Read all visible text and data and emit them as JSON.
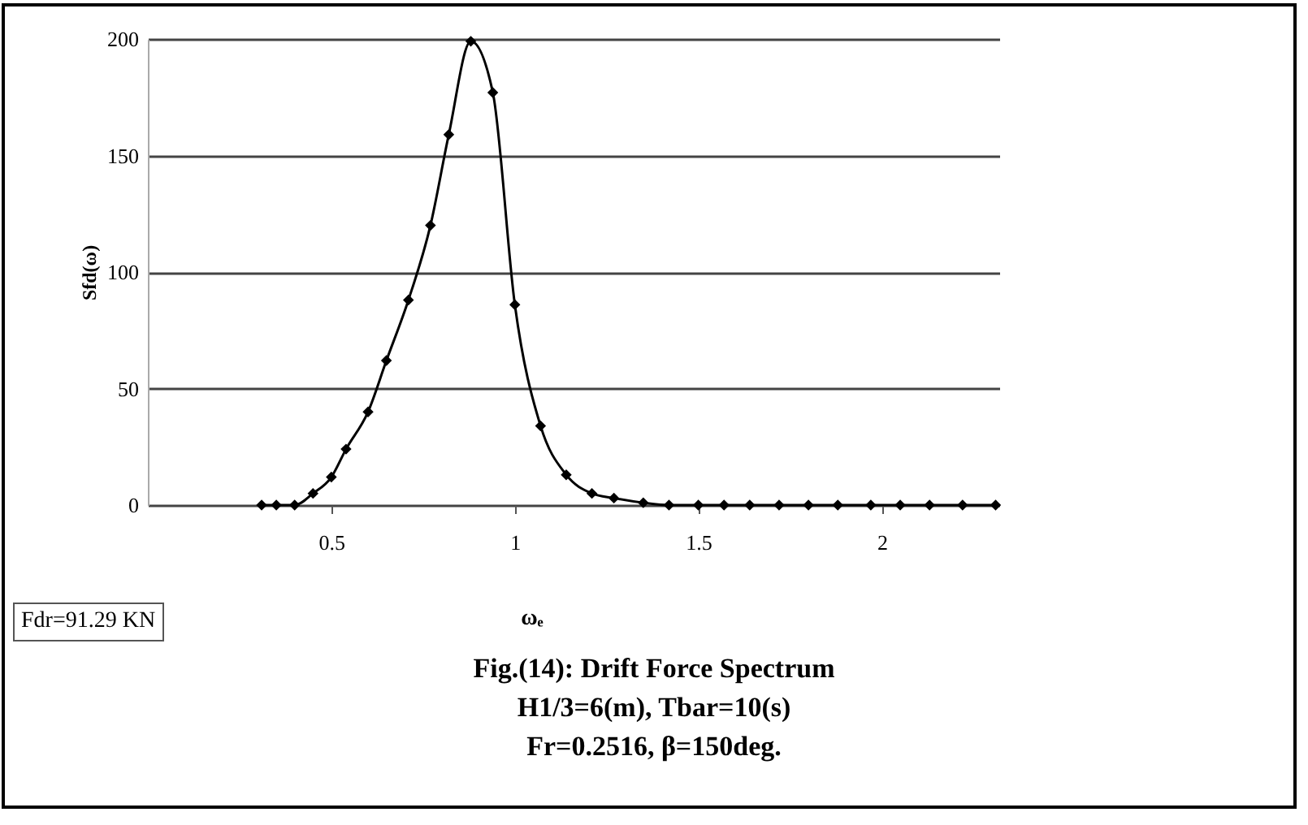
{
  "chart_data": {
    "type": "line",
    "title": "Fig.(14): Drift Force Spectrum",
    "subtitle": "H1/3=6(m), Tbar=10(s)",
    "annotations": [
      "Fr=0.2516, β=150deg.",
      "Fdr=91.29 KN"
    ],
    "xlabel": "ωₑ",
    "ylabel": "Sfd(ω)",
    "x": [
      0.31,
      0.35,
      0.4,
      0.45,
      0.5,
      0.54,
      0.6,
      0.65,
      0.71,
      0.77,
      0.82,
      0.88,
      0.94,
      1.0,
      1.07,
      1.14,
      1.21,
      1.27,
      1.35,
      1.42,
      1.5,
      1.57,
      1.64,
      1.72,
      1.8,
      1.88,
      1.97,
      2.05,
      2.13,
      2.22,
      2.31
    ],
    "series": [
      {
        "color": "#000000",
        "values": [
          0,
          0,
          0,
          5,
          12,
          24,
          40,
          62,
          88,
          120,
          159,
          199,
          177,
          86,
          34,
          13,
          5,
          3,
          1,
          0,
          0,
          0,
          0,
          0,
          0,
          0,
          0,
          0,
          0,
          0,
          0
        ]
      }
    ],
    "xlim": [
      0,
      2.32
    ],
    "ylim": [
      0,
      200
    ],
    "xticks": [
      0.5,
      1,
      1.5,
      2
    ],
    "yticks": [
      0,
      50,
      100,
      150,
      200
    ],
    "grid": "y",
    "marker": "diamond",
    "line_style": "solid"
  }
}
